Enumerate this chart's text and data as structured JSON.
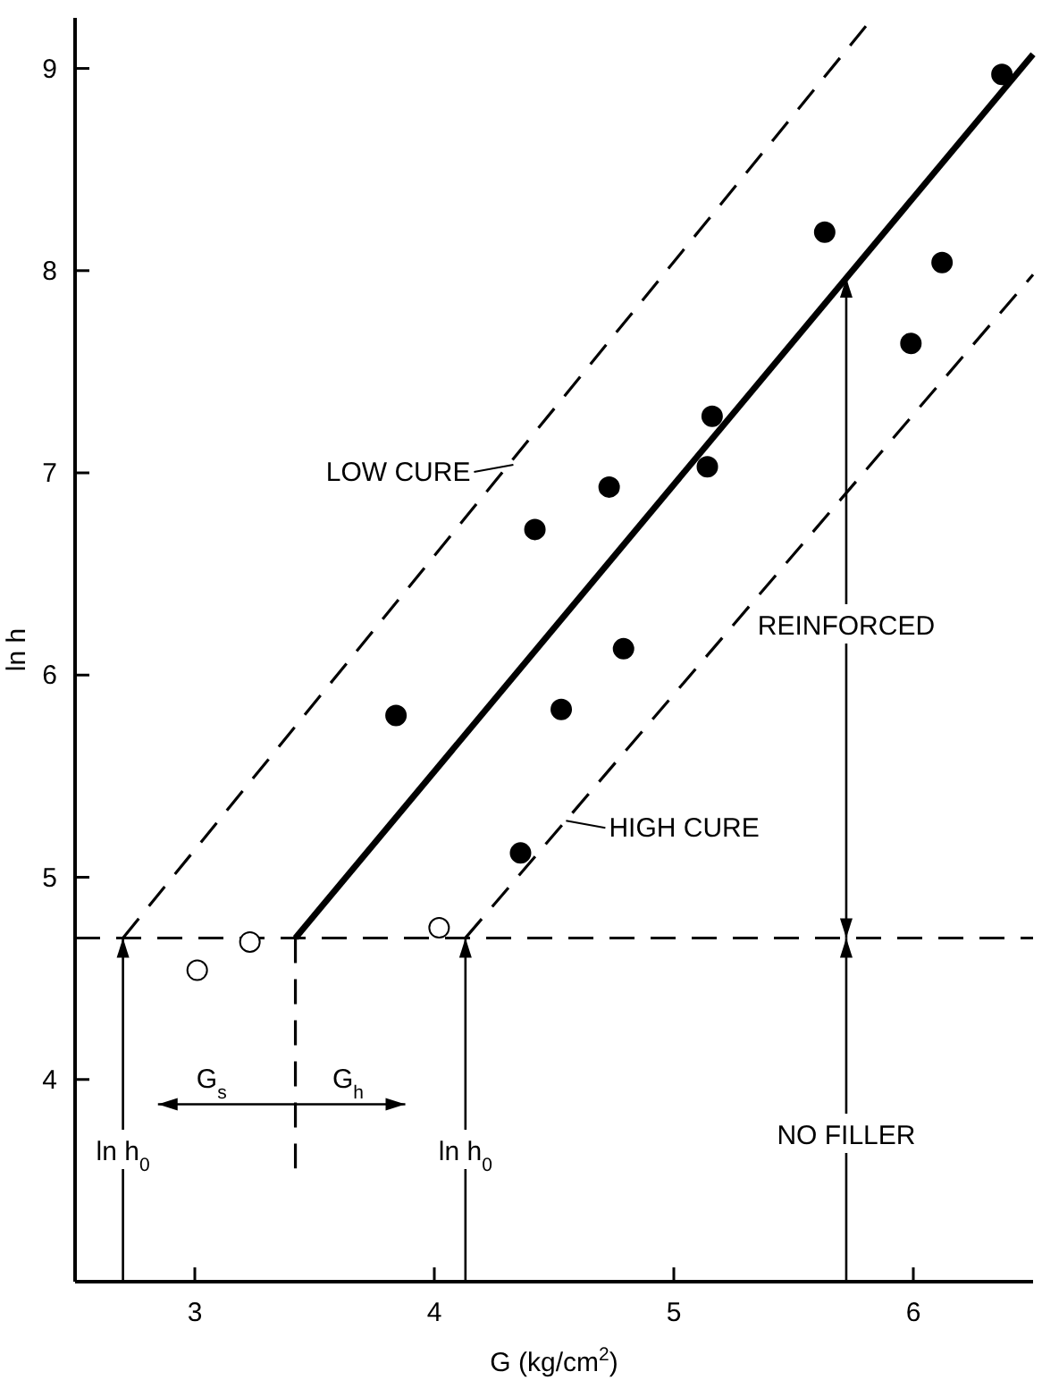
{
  "chart_data": {
    "type": "scatter",
    "xlabel": "G (kg/cm$^{2}$)",
    "ylabel": "ln h",
    "xlim": [
      2.5,
      6.5
    ],
    "ylim": [
      3,
      9.25
    ],
    "xticks": [
      3,
      4,
      5,
      6
    ],
    "yticks": [
      4,
      5,
      6,
      7,
      8,
      9
    ],
    "grid": false,
    "series": [
      {
        "marker": "circle",
        "color": "#000000",
        "x": [
          3.84,
          4.42,
          4.73,
          4.79,
          4.53,
          4.36,
          5.16,
          5.14,
          5.63,
          6.12,
          5.99,
          6.37
        ],
        "values": [
          5.8,
          6.72,
          6.93,
          6.13,
          5.83,
          5.12,
          7.28,
          7.03,
          8.19,
          8.04,
          7.64,
          8.97
        ]
      },
      {
        "marker": "circle",
        "color": "#ffffff",
        "x": [
          3.01,
          3.23,
          4.02
        ],
        "values": [
          4.54,
          4.68,
          4.75
        ]
      },
      {
        "type": "line",
        "marker": "none",
        "line_style": "solid",
        "color": "#000000",
        "x": [
          3.42,
          6.5
        ],
        "values": [
          4.7,
          9.07
        ]
      },
      {
        "type": "line",
        "marker": "none",
        "line_style": "dashed",
        "color": "#000000",
        "x": [
          2.7,
          5.83
        ],
        "values": [
          4.7,
          9.25
        ]
      },
      {
        "type": "line",
        "marker": "none",
        "line_style": "dashed",
        "color": "#000000",
        "x": [
          4.13,
          6.5
        ],
        "values": [
          4.7,
          7.98
        ]
      },
      {
        "type": "line",
        "marker": "none",
        "line_style": "dashed",
        "color": "#000000",
        "x": [
          3.42,
          3.42
        ],
        "values": [
          4.7,
          3.56
        ]
      }
    ],
    "ref_lines": [
      {
        "axis": "y",
        "value": 4.7,
        "color": "#000000",
        "line_style": "dashed"
      }
    ],
    "annotations": [
      {
        "text": "LOW CURE",
        "x": 4.33,
        "y": 7.04
      },
      {
        "text": "HIGH CURE",
        "x": 4.55,
        "y": 5.28
      },
      "ln h$_{0}$",
      "ln h$_{0}$",
      {
        "text": "G$_{s}$",
        "x": 3.07,
        "y": 4.01
      },
      {
        "text": "G$_{h}$",
        "x": 3.64,
        "y": 4.01
      },
      "REINFORCED",
      "NO FILLER"
    ]
  }
}
